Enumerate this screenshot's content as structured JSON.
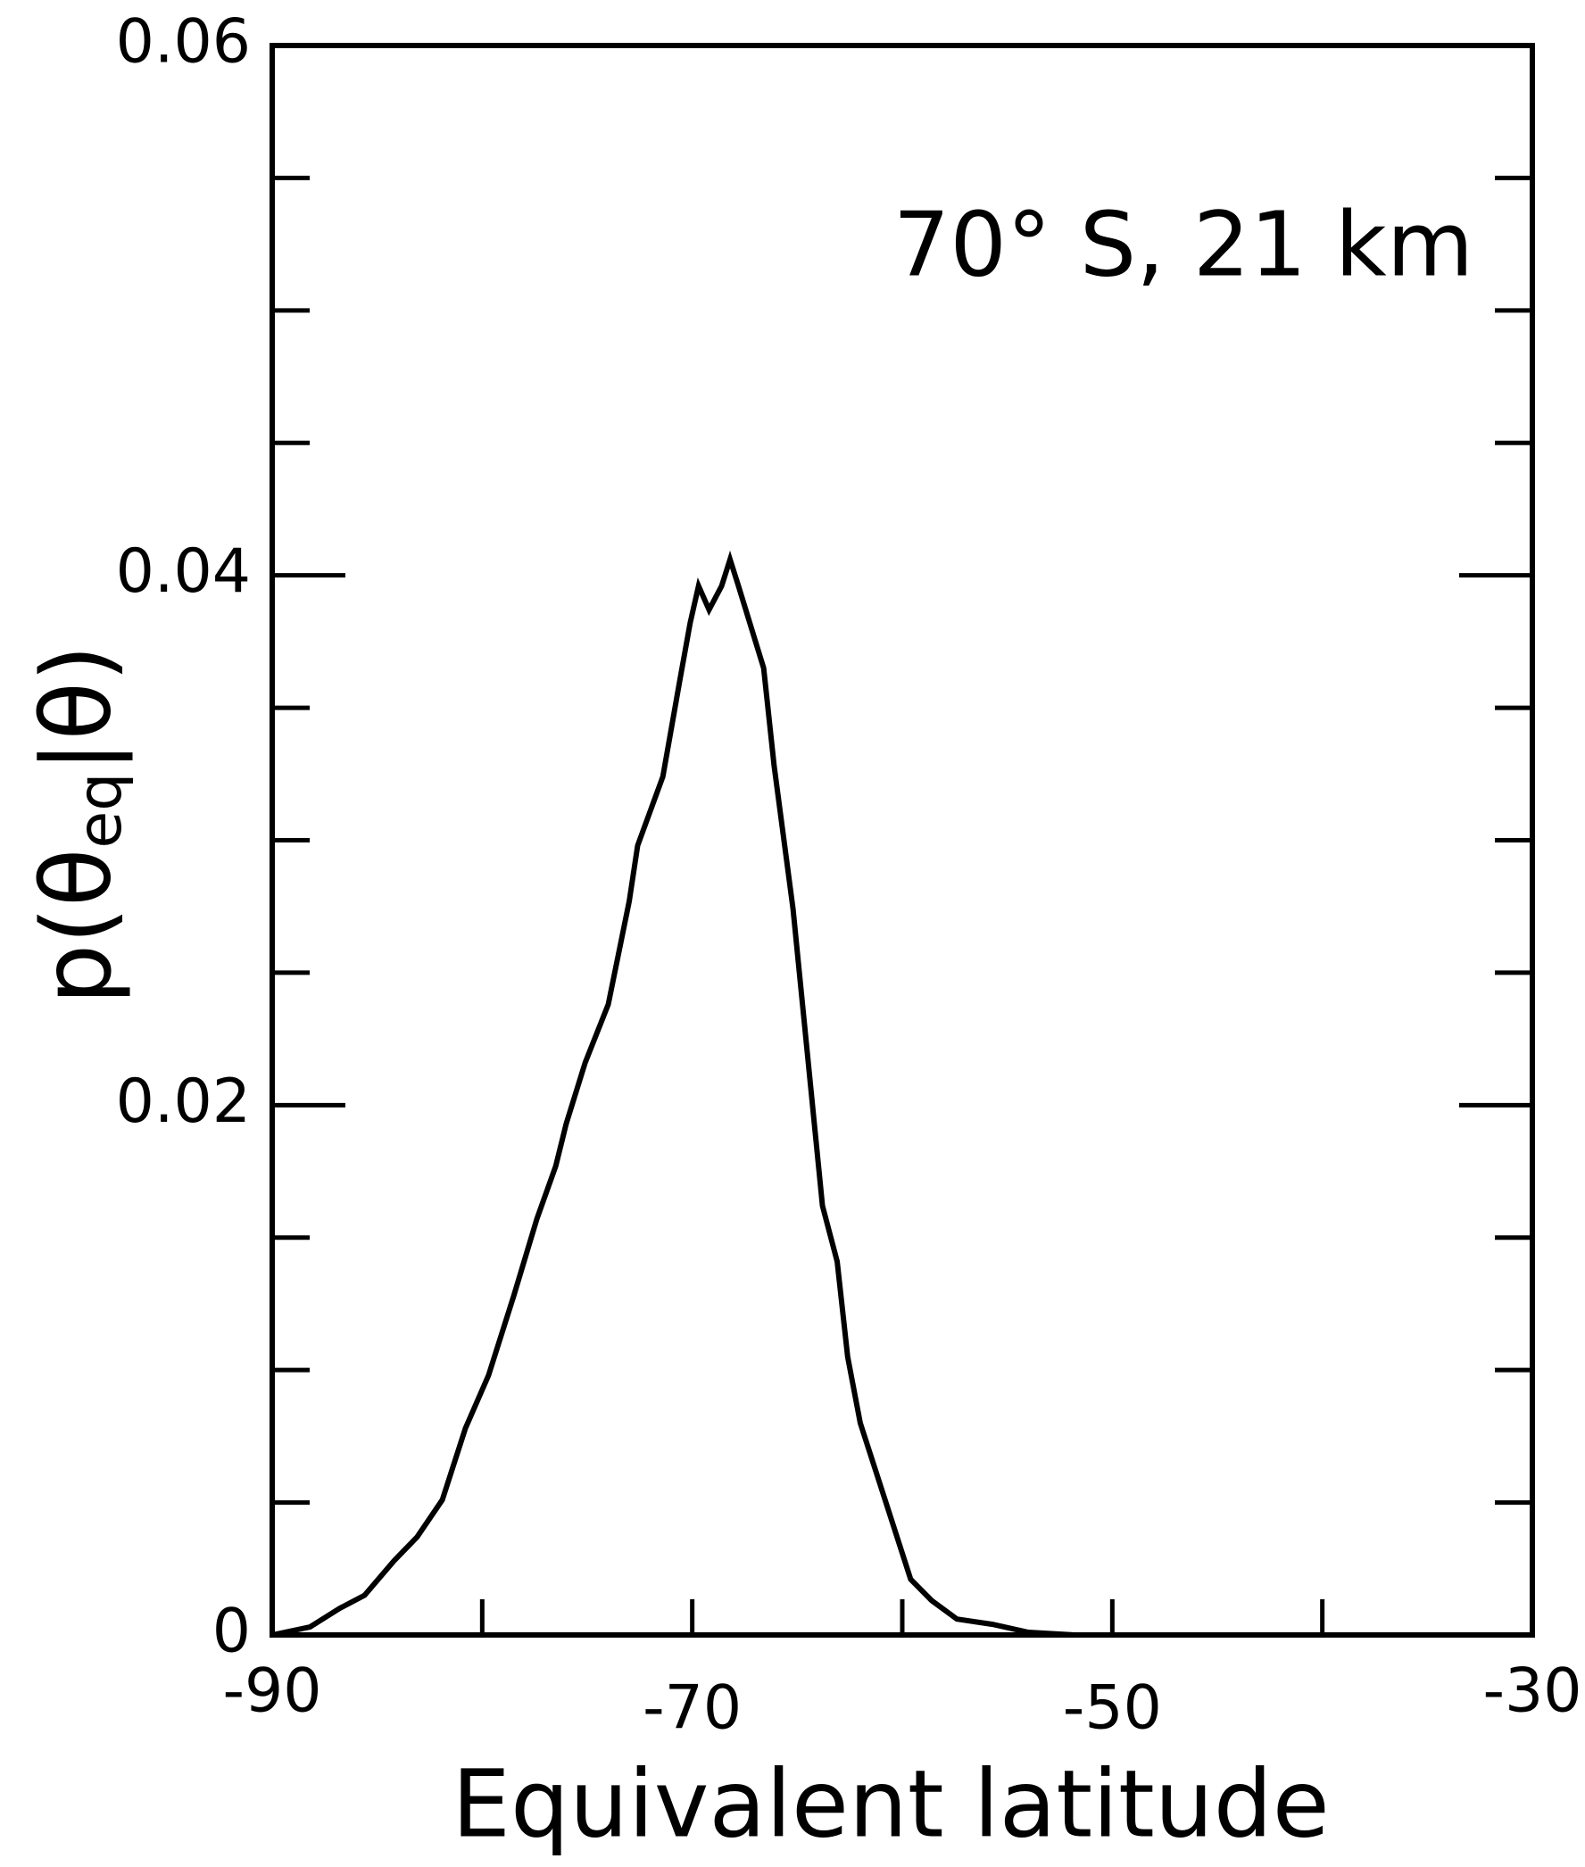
{
  "chart_data": {
    "type": "line",
    "annotation": "70° S, 21 km",
    "xlabel": "Equivalent latitude",
    "ylabel": [
      "p(θ",
      "eq",
      "|θ)"
    ],
    "x": [
      -90,
      -88.2,
      -86.8,
      -85.6,
      -84.2,
      -83.1,
      -81.9,
      -80.8,
      -79.7,
      -78.5,
      -77.4,
      -76.5,
      -76.0,
      -75.1,
      -74.0,
      -73.0,
      -72.6,
      -71.4,
      -70.6,
      -70.1,
      -69.7,
      -69.2,
      -68.6,
      -68.2,
      -67.8,
      -66.6,
      -66.1,
      -65.2,
      -63.8,
      -63.1,
      -62.6,
      -62.0,
      -60.9,
      -59.6,
      -58.6,
      -57.4,
      -55.7,
      -54.0,
      -51.8,
      -30
    ],
    "series": [
      {
        "color": "#000000",
        "values": [
          0,
          0.0003,
          0.001,
          0.0015,
          0.0028,
          0.0037,
          0.0051,
          0.0078,
          0.0098,
          0.0128,
          0.0157,
          0.0177,
          0.0193,
          0.0216,
          0.0238,
          0.0277,
          0.0298,
          0.0324,
          0.036,
          0.0382,
          0.0396,
          0.0387,
          0.0396,
          0.0406,
          0.0396,
          0.0365,
          0.0328,
          0.0274,
          0.0162,
          0.0141,
          0.0105,
          0.008,
          0.0053,
          0.0021,
          0.0013,
          0.0006,
          0.0004,
          0.0001,
          0,
          0
        ]
      }
    ],
    "xlim": [
      -90,
      -30
    ],
    "xticks": [
      -90,
      -70,
      -50,
      -30
    ],
    "xminorticks": [
      -80,
      -60,
      -40
    ],
    "ylim": [
      0,
      0.06
    ],
    "yticks": [
      0,
      0.02,
      0.04,
      0.06
    ],
    "yminorticks": [
      0.005,
      0.01,
      0.015,
      0.025,
      0.03,
      0.035,
      0.045,
      0.05,
      0.055
    ],
    "grid": false
  }
}
